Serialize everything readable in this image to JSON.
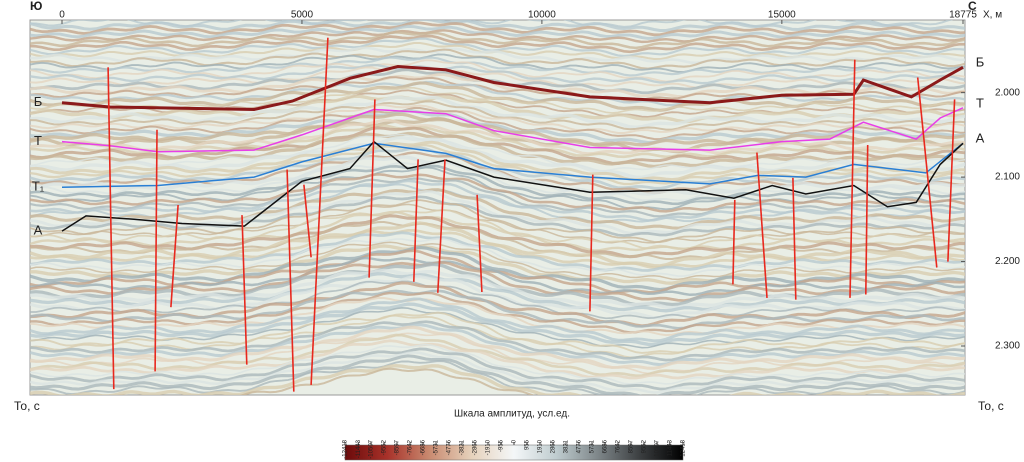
{
  "chart_data": {
    "type": "seismic-section",
    "corner_left": "Ю",
    "corner_right": "С",
    "xlabel": "X, м",
    "ylabel": "То, с",
    "xlim": [
      0,
      18775
    ],
    "xticks": [
      0,
      5000,
      10000,
      15000,
      18775
    ],
    "ylim": [
      1.914,
      2.358
    ],
    "yticks": [
      {
        "value": 2.0,
        "label": "2.000"
      },
      {
        "value": 2.1,
        "label": "2.100"
      },
      {
        "value": 2.2,
        "label": "2.200"
      },
      {
        "value": 2.3,
        "label": "2.300"
      }
    ],
    "series": [
      {
        "name": "Б",
        "color": "#8b1a1a",
        "label_color": "#e0202a",
        "right_label": true,
        "x": [
          0,
          1000,
          4000,
          4800,
          6000,
          7000,
          8000,
          9000,
          11000,
          13500,
          15000,
          16500,
          16700,
          17700,
          18300,
          18775
        ],
        "values": [
          2.012,
          2.017,
          2.02,
          2.01,
          1.983,
          1.969,
          1.973,
          1.988,
          2.005,
          2.012,
          2.003,
          2.002,
          1.985,
          2.005,
          1.985,
          1.97
        ]
      },
      {
        "name": "Т",
        "color": "#e83ee8",
        "label_color": "#e83ee8",
        "right_label": true,
        "x": [
          0,
          1000,
          2000,
          4000,
          5000,
          6500,
          8000,
          9000,
          11000,
          13500,
          15000,
          16000,
          16700,
          17800,
          18300,
          18775
        ],
        "values": [
          2.058,
          2.063,
          2.07,
          2.068,
          2.05,
          2.02,
          2.025,
          2.045,
          2.065,
          2.068,
          2.058,
          2.055,
          2.035,
          2.055,
          2.03,
          2.018
        ]
      },
      {
        "name": "Т₁",
        "color": "#2a7fd4",
        "label_color": "#2a7fd4",
        "right_label": false,
        "x": [
          0,
          2000,
          3000,
          4000,
          5000,
          6500,
          8000,
          9000,
          11000,
          13500,
          14500,
          15500,
          16500,
          18000,
          18775
        ],
        "values": [
          2.112,
          2.11,
          2.105,
          2.1,
          2.082,
          2.06,
          2.072,
          2.09,
          2.1,
          2.108,
          2.098,
          2.1,
          2.085,
          2.095,
          2.06
        ]
      },
      {
        "name": "А",
        "color": "#111111",
        "label_color": "#111111",
        "right_label": true,
        "x": [
          0,
          500,
          1500,
          2500,
          3800,
          5000,
          6000,
          6500,
          7200,
          8000,
          9000,
          11000,
          13000,
          14000,
          14800,
          15500,
          16500,
          17200,
          17800,
          18300,
          18775
        ],
        "values": [
          2.164,
          2.146,
          2.15,
          2.155,
          2.158,
          2.105,
          2.09,
          2.058,
          2.09,
          2.08,
          2.1,
          2.118,
          2.115,
          2.125,
          2.11,
          2.12,
          2.11,
          2.135,
          2.13,
          2.085,
          2.06
        ]
      }
    ],
    "faults": {
      "color": "#e8281e",
      "lines": [
        {
          "x": [
            960,
            1080
          ],
          "values": [
            1.97,
            2.351
          ]
        },
        {
          "x": [
            1980,
            1940
          ],
          "values": [
            2.044,
            2.33
          ]
        },
        {
          "x": [
            2420,
            2270
          ],
          "values": [
            2.133,
            2.254
          ]
        },
        {
          "x": [
            3750,
            3850
          ],
          "values": [
            2.145,
            2.322
          ]
        },
        {
          "x": [
            4690,
            4830
          ],
          "values": [
            2.091,
            2.354
          ]
        },
        {
          "x": [
            5040,
            5190
          ],
          "values": [
            2.109,
            2.195
          ]
        },
        {
          "x": [
            5540,
            5190
          ],
          "values": [
            1.935,
            2.346
          ]
        },
        {
          "x": [
            6520,
            6400
          ],
          "values": [
            2.008,
            2.219
          ]
        },
        {
          "x": [
            7420,
            7330
          ],
          "values": [
            2.079,
            2.224
          ]
        },
        {
          "x": [
            7980,
            7830
          ],
          "values": [
            2.079,
            2.237
          ]
        },
        {
          "x": [
            8650,
            8750
          ],
          "values": [
            2.121,
            2.236
          ]
        },
        {
          "x": [
            11060,
            11000
          ],
          "values": [
            2.097,
            2.259
          ]
        },
        {
          "x": [
            14020,
            13980
          ],
          "values": [
            2.127,
            2.227
          ]
        },
        {
          "x": [
            14480,
            14690
          ],
          "values": [
            2.071,
            2.243
          ]
        },
        {
          "x": [
            15230,
            15290
          ],
          "values": [
            2.101,
            2.245
          ]
        },
        {
          "x": [
            16520,
            16420
          ],
          "values": [
            1.961,
            2.243
          ]
        },
        {
          "x": [
            16790,
            16750
          ],
          "values": [
            2.062,
            2.239
          ]
        },
        {
          "x": [
            17830,
            18230
          ],
          "values": [
            1.982,
            2.207
          ]
        },
        {
          "x": [
            18600,
            18460
          ],
          "values": [
            2.008,
            2.2
          ]
        }
      ]
    },
    "colorbar": {
      "title": "Шкала амплитуд, усл.ед.",
      "colors": [
        "#6b0a0a",
        "#a8322a",
        "#c98a70",
        "#e6d2bc",
        "#f4f7f8",
        "#bfcccf",
        "#7d8588",
        "#3a3d3f",
        "#000000"
      ],
      "ticks": [
        -12418,
        -11443,
        -10507,
        -9552,
        -8597,
        -7642,
        -6686,
        -5731,
        -4776,
        -3821,
        -2865,
        -1910,
        -955,
        0,
        955,
        1910,
        2865,
        3821,
        4776,
        5731,
        6686,
        7642,
        8597,
        9552,
        10507,
        11443,
        12418
      ]
    }
  }
}
